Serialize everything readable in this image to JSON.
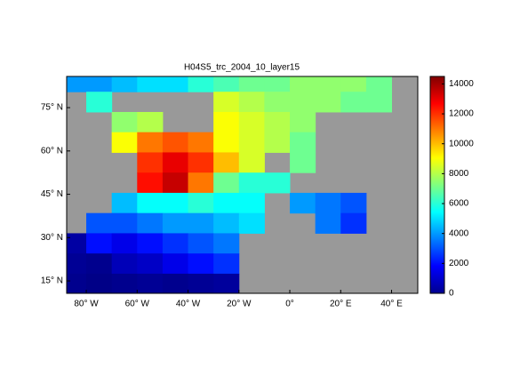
{
  "chart_data": {
    "type": "heatmap",
    "title": "H04S5_trc_2004_10_layer15",
    "x": [
      -85,
      -75,
      -65,
      -55,
      -45,
      -35,
      -25,
      -15,
      -5,
      5,
      15,
      25,
      35,
      45
    ],
    "y": [
      84,
      77,
      70,
      63,
      56,
      49,
      42,
      35,
      28,
      21,
      14
    ],
    "values": [
      [
        4000,
        4000,
        4500,
        5000,
        5000,
        6000,
        6500,
        7000,
        7000,
        7500,
        7500,
        7500,
        7000,
        null
      ],
      [
        null,
        6000,
        null,
        null,
        null,
        null,
        8500,
        8000,
        7500,
        7500,
        7500,
        7000,
        7000,
        null
      ],
      [
        null,
        null,
        7500,
        8000,
        null,
        null,
        9000,
        8500,
        8000,
        7500,
        null,
        null,
        null,
        null
      ],
      [
        null,
        null,
        9000,
        11000,
        11500,
        11000,
        9000,
        8500,
        8000,
        7000,
        null,
        null,
        null,
        null
      ],
      [
        null,
        null,
        null,
        12000,
        13000,
        12000,
        10000,
        8500,
        null,
        7000,
        null,
        null,
        null,
        null
      ],
      [
        null,
        null,
        null,
        12500,
        13500,
        11000,
        7000,
        6000,
        6000,
        null,
        null,
        null,
        null,
        null
      ],
      [
        null,
        null,
        4500,
        5500,
        5500,
        6000,
        5500,
        5500,
        null,
        4000,
        3500,
        3000,
        null,
        null
      ],
      [
        null,
        3000,
        3000,
        3500,
        4000,
        4000,
        4500,
        5000,
        null,
        null,
        3500,
        2500,
        null,
        null
      ],
      [
        500,
        2000,
        1500,
        2000,
        2500,
        3000,
        3500,
        null,
        null,
        null,
        null,
        null,
        null,
        null
      ],
      [
        300,
        200,
        800,
        1000,
        1500,
        2000,
        2500,
        null,
        null,
        null,
        null,
        null,
        null,
        null
      ],
      [
        200,
        100,
        200,
        300,
        200,
        300,
        400,
        null,
        null,
        null,
        null,
        null,
        null,
        null
      ]
    ],
    "xlim": [
      -87.7,
      50.3
    ],
    "ylim": [
      10.7,
      85.8
    ],
    "xticks": [
      {
        "value": -80,
        "label": "80° W"
      },
      {
        "value": -60,
        "label": "60° W"
      },
      {
        "value": -40,
        "label": "40° W"
      },
      {
        "value": -20,
        "label": "20° W"
      },
      {
        "value": 0,
        "label": "0°"
      },
      {
        "value": 20,
        "label": "20° E"
      },
      {
        "value": 40,
        "label": "40° E"
      }
    ],
    "yticks": [
      {
        "value": 15,
        "label": "15° N"
      },
      {
        "value": 30,
        "label": "30° N"
      },
      {
        "value": 45,
        "label": "45° N"
      },
      {
        "value": 60,
        "label": "60° N"
      },
      {
        "value": 75,
        "label": "75° N"
      }
    ],
    "clim": [
      0,
      14500
    ],
    "cticks": [
      0,
      2000,
      4000,
      6000,
      8000,
      10000,
      12000,
      14000
    ]
  }
}
